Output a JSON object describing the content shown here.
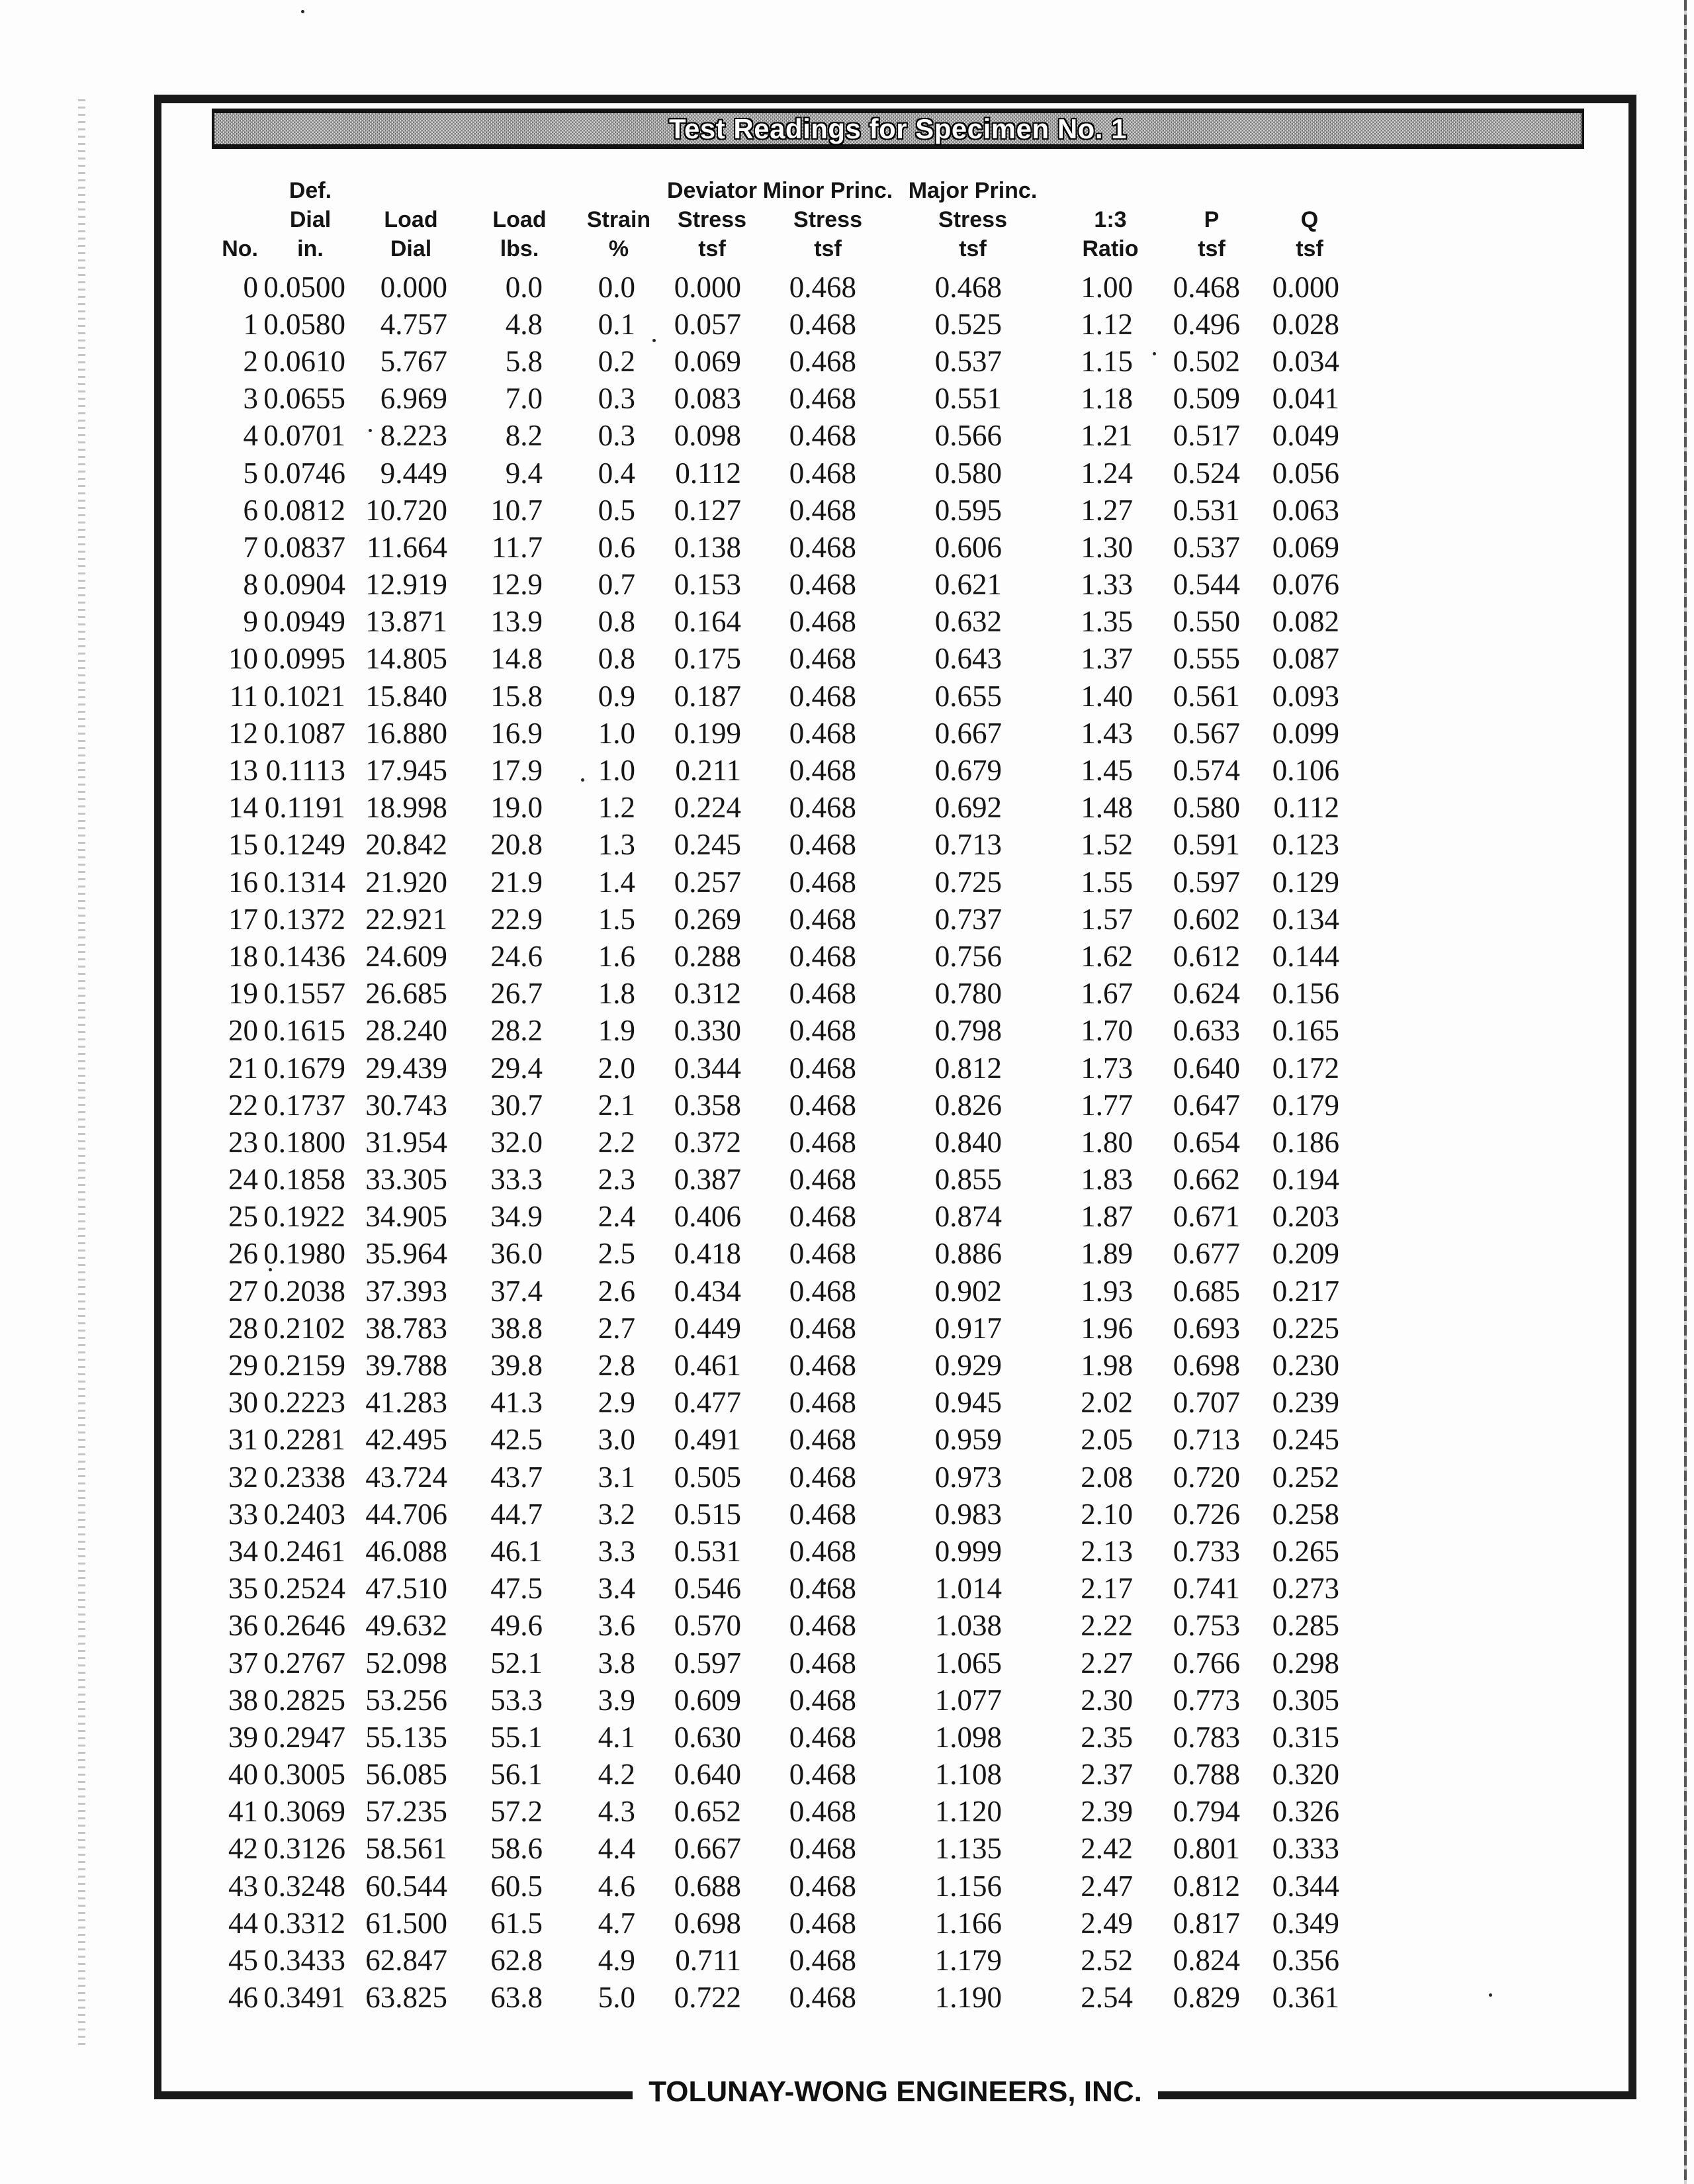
{
  "document": {
    "title": "Test Readings for Specimen No. 1",
    "footer": "TOLUNAY-WONG ENGINEERS, INC."
  },
  "table": {
    "columns": [
      {
        "id": "no",
        "lines": [
          "",
          "",
          "No."
        ]
      },
      {
        "id": "def-dial-in",
        "lines": [
          "Def.",
          "Dial",
          "in."
        ]
      },
      {
        "id": "load-dial",
        "lines": [
          "",
          "Load",
          "Dial"
        ]
      },
      {
        "id": "load-lbs",
        "lines": [
          "",
          "Load",
          "lbs."
        ]
      },
      {
        "id": "strain-pct",
        "lines": [
          "",
          "Strain",
          "%"
        ]
      },
      {
        "id": "deviator-stress-tsf",
        "lines": [
          "Deviator",
          "Stress",
          "tsf"
        ]
      },
      {
        "id": "minor-princ-stress-tsf",
        "lines": [
          "Minor Princ.",
          "Stress",
          "tsf"
        ]
      },
      {
        "id": "major-princ-stress-tsf",
        "lines": [
          "Major Princ.",
          "Stress",
          "tsf"
        ]
      },
      {
        "id": "ratio-1-3",
        "lines": [
          "",
          "1:3",
          "Ratio"
        ]
      },
      {
        "id": "p-tsf",
        "lines": [
          "",
          "P",
          "tsf"
        ]
      },
      {
        "id": "q-tsf",
        "lines": [
          "",
          "Q",
          "tsf"
        ]
      }
    ],
    "rows": [
      [
        "0",
        "0.0500",
        "0.000",
        "0.0",
        "0.0",
        "0.000",
        "0.468",
        "0.468",
        "1.00",
        "0.468",
        "0.000"
      ],
      [
        "1",
        "0.0580",
        "4.757",
        "4.8",
        "0.1",
        "0.057",
        "0.468",
        "0.525",
        "1.12",
        "0.496",
        "0.028"
      ],
      [
        "2",
        "0.0610",
        "5.767",
        "5.8",
        "0.2",
        "0.069",
        "0.468",
        "0.537",
        "1.15",
        "0.502",
        "0.034"
      ],
      [
        "3",
        "0.0655",
        "6.969",
        "7.0",
        "0.3",
        "0.083",
        "0.468",
        "0.551",
        "1.18",
        "0.509",
        "0.041"
      ],
      [
        "4",
        "0.0701",
        "8.223",
        "8.2",
        "0.3",
        "0.098",
        "0.468",
        "0.566",
        "1.21",
        "0.517",
        "0.049"
      ],
      [
        "5",
        "0.0746",
        "9.449",
        "9.4",
        "0.4",
        "0.112",
        "0.468",
        "0.580",
        "1.24",
        "0.524",
        "0.056"
      ],
      [
        "6",
        "0.0812",
        "10.720",
        "10.7",
        "0.5",
        "0.127",
        "0.468",
        "0.595",
        "1.27",
        "0.531",
        "0.063"
      ],
      [
        "7",
        "0.0837",
        "11.664",
        "11.7",
        "0.6",
        "0.138",
        "0.468",
        "0.606",
        "1.30",
        "0.537",
        "0.069"
      ],
      [
        "8",
        "0.0904",
        "12.919",
        "12.9",
        "0.7",
        "0.153",
        "0.468",
        "0.621",
        "1.33",
        "0.544",
        "0.076"
      ],
      [
        "9",
        "0.0949",
        "13.871",
        "13.9",
        "0.8",
        "0.164",
        "0.468",
        "0.632",
        "1.35",
        "0.550",
        "0.082"
      ],
      [
        "10",
        "0.0995",
        "14.805",
        "14.8",
        "0.8",
        "0.175",
        "0.468",
        "0.643",
        "1.37",
        "0.555",
        "0.087"
      ],
      [
        "11",
        "0.1021",
        "15.840",
        "15.8",
        "0.9",
        "0.187",
        "0.468",
        "0.655",
        "1.40",
        "0.561",
        "0.093"
      ],
      [
        "12",
        "0.1087",
        "16.880",
        "16.9",
        "1.0",
        "0.199",
        "0.468",
        "0.667",
        "1.43",
        "0.567",
        "0.099"
      ],
      [
        "13",
        "0.1113",
        "17.945",
        "17.9",
        "1.0",
        "0.211",
        "0.468",
        "0.679",
        "1.45",
        "0.574",
        "0.106"
      ],
      [
        "14",
        "0.1191",
        "18.998",
        "19.0",
        "1.2",
        "0.224",
        "0.468",
        "0.692",
        "1.48",
        "0.580",
        "0.112"
      ],
      [
        "15",
        "0.1249",
        "20.842",
        "20.8",
        "1.3",
        "0.245",
        "0.468",
        "0.713",
        "1.52",
        "0.591",
        "0.123"
      ],
      [
        "16",
        "0.1314",
        "21.920",
        "21.9",
        "1.4",
        "0.257",
        "0.468",
        "0.725",
        "1.55",
        "0.597",
        "0.129"
      ],
      [
        "17",
        "0.1372",
        "22.921",
        "22.9",
        "1.5",
        "0.269",
        "0.468",
        "0.737",
        "1.57",
        "0.602",
        "0.134"
      ],
      [
        "18",
        "0.1436",
        "24.609",
        "24.6",
        "1.6",
        "0.288",
        "0.468",
        "0.756",
        "1.62",
        "0.612",
        "0.144"
      ],
      [
        "19",
        "0.1557",
        "26.685",
        "26.7",
        "1.8",
        "0.312",
        "0.468",
        "0.780",
        "1.67",
        "0.624",
        "0.156"
      ],
      [
        "20",
        "0.1615",
        "28.240",
        "28.2",
        "1.9",
        "0.330",
        "0.468",
        "0.798",
        "1.70",
        "0.633",
        "0.165"
      ],
      [
        "21",
        "0.1679",
        "29.439",
        "29.4",
        "2.0",
        "0.344",
        "0.468",
        "0.812",
        "1.73",
        "0.640",
        "0.172"
      ],
      [
        "22",
        "0.1737",
        "30.743",
        "30.7",
        "2.1",
        "0.358",
        "0.468",
        "0.826",
        "1.77",
        "0.647",
        "0.179"
      ],
      [
        "23",
        "0.1800",
        "31.954",
        "32.0",
        "2.2",
        "0.372",
        "0.468",
        "0.840",
        "1.80",
        "0.654",
        "0.186"
      ],
      [
        "24",
        "0.1858",
        "33.305",
        "33.3",
        "2.3",
        "0.387",
        "0.468",
        "0.855",
        "1.83",
        "0.662",
        "0.194"
      ],
      [
        "25",
        "0.1922",
        "34.905",
        "34.9",
        "2.4",
        "0.406",
        "0.468",
        "0.874",
        "1.87",
        "0.671",
        "0.203"
      ],
      [
        "26",
        "0.1980",
        "35.964",
        "36.0",
        "2.5",
        "0.418",
        "0.468",
        "0.886",
        "1.89",
        "0.677",
        "0.209"
      ],
      [
        "27",
        "0.2038",
        "37.393",
        "37.4",
        "2.6",
        "0.434",
        "0.468",
        "0.902",
        "1.93",
        "0.685",
        "0.217"
      ],
      [
        "28",
        "0.2102",
        "38.783",
        "38.8",
        "2.7",
        "0.449",
        "0.468",
        "0.917",
        "1.96",
        "0.693",
        "0.225"
      ],
      [
        "29",
        "0.2159",
        "39.788",
        "39.8",
        "2.8",
        "0.461",
        "0.468",
        "0.929",
        "1.98",
        "0.698",
        "0.230"
      ],
      [
        "30",
        "0.2223",
        "41.283",
        "41.3",
        "2.9",
        "0.477",
        "0.468",
        "0.945",
        "2.02",
        "0.707",
        "0.239"
      ],
      [
        "31",
        "0.2281",
        "42.495",
        "42.5",
        "3.0",
        "0.491",
        "0.468",
        "0.959",
        "2.05",
        "0.713",
        "0.245"
      ],
      [
        "32",
        "0.2338",
        "43.724",
        "43.7",
        "3.1",
        "0.505",
        "0.468",
        "0.973",
        "2.08",
        "0.720",
        "0.252"
      ],
      [
        "33",
        "0.2403",
        "44.706",
        "44.7",
        "3.2",
        "0.515",
        "0.468",
        "0.983",
        "2.10",
        "0.726",
        "0.258"
      ],
      [
        "34",
        "0.2461",
        "46.088",
        "46.1",
        "3.3",
        "0.531",
        "0.468",
        "0.999",
        "2.13",
        "0.733",
        "0.265"
      ],
      [
        "35",
        "0.2524",
        "47.510",
        "47.5",
        "3.4",
        "0.546",
        "0.468",
        "1.014",
        "2.17",
        "0.741",
        "0.273"
      ],
      [
        "36",
        "0.2646",
        "49.632",
        "49.6",
        "3.6",
        "0.570",
        "0.468",
        "1.038",
        "2.22",
        "0.753",
        "0.285"
      ],
      [
        "37",
        "0.2767",
        "52.098",
        "52.1",
        "3.8",
        "0.597",
        "0.468",
        "1.065",
        "2.27",
        "0.766",
        "0.298"
      ],
      [
        "38",
        "0.2825",
        "53.256",
        "53.3",
        "3.9",
        "0.609",
        "0.468",
        "1.077",
        "2.30",
        "0.773",
        "0.305"
      ],
      [
        "39",
        "0.2947",
        "55.135",
        "55.1",
        "4.1",
        "0.630",
        "0.468",
        "1.098",
        "2.35",
        "0.783",
        "0.315"
      ],
      [
        "40",
        "0.3005",
        "56.085",
        "56.1",
        "4.2",
        "0.640",
        "0.468",
        "1.108",
        "2.37",
        "0.788",
        "0.320"
      ],
      [
        "41",
        "0.3069",
        "57.235",
        "57.2",
        "4.3",
        "0.652",
        "0.468",
        "1.120",
        "2.39",
        "0.794",
        "0.326"
      ],
      [
        "42",
        "0.3126",
        "58.561",
        "58.6",
        "4.4",
        "0.667",
        "0.468",
        "1.135",
        "2.42",
        "0.801",
        "0.333"
      ],
      [
        "43",
        "0.3248",
        "60.544",
        "60.5",
        "4.6",
        "0.688",
        "0.468",
        "1.156",
        "2.47",
        "0.812",
        "0.344"
      ],
      [
        "44",
        "0.3312",
        "61.500",
        "61.5",
        "4.7",
        "0.698",
        "0.468",
        "1.166",
        "2.49",
        "0.817",
        "0.349"
      ],
      [
        "45",
        "0.3433",
        "62.847",
        "62.8",
        "4.9",
        "0.711",
        "0.468",
        "1.179",
        "2.52",
        "0.824",
        "0.356"
      ],
      [
        "46",
        "0.3491",
        "63.825",
        "63.8",
        "5.0",
        "0.722",
        "0.468",
        "1.190",
        "2.54",
        "0.829",
        "0.361"
      ]
    ]
  }
}
